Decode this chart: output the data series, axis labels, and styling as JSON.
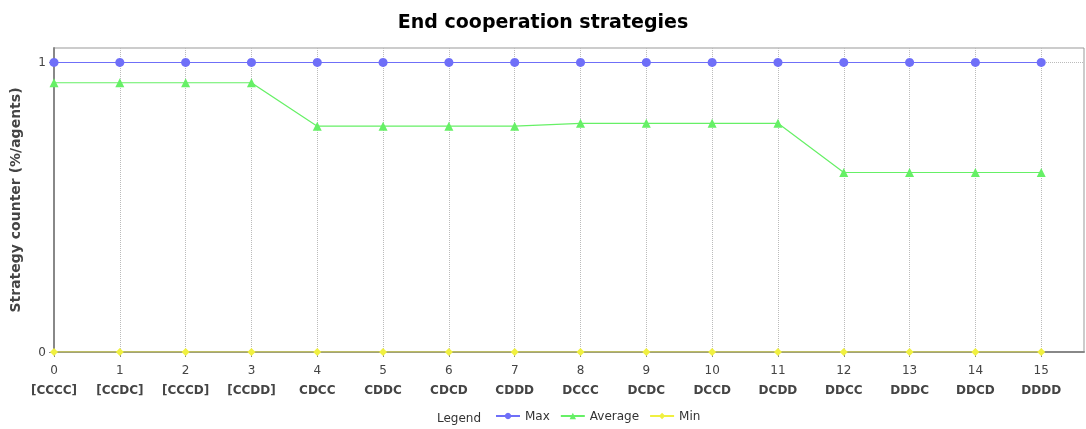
{
  "chart_data": {
    "type": "line",
    "title": "End cooperation strategies",
    "ylabel": "Strategy counter (%/agents)",
    "legend_title": "Legend",
    "x": [
      0,
      1,
      2,
      3,
      4,
      5,
      6,
      7,
      8,
      9,
      10,
      11,
      12,
      13,
      14,
      15
    ],
    "xlim": [
      0,
      15.65
    ],
    "xticks": [
      {
        "value": 0,
        "label": "0\n[CCCC]"
      },
      {
        "value": 1,
        "label": "1\n[CCDC]"
      },
      {
        "value": 2,
        "label": "2\n[CCCD]"
      },
      {
        "value": 3,
        "label": "3\n[CCDD]"
      },
      {
        "value": 4,
        "label": "4\nCDCC"
      },
      {
        "value": 5,
        "label": "5\nCDDC"
      },
      {
        "value": 6,
        "label": "6\nCDCD"
      },
      {
        "value": 7,
        "label": "7\nCDDD"
      },
      {
        "value": 8,
        "label": "8\nDCCC"
      },
      {
        "value": 9,
        "label": "9\nDCDC"
      },
      {
        "value": 10,
        "label": "10\nDCCD"
      },
      {
        "value": 11,
        "label": "11\nDCDD"
      },
      {
        "value": 12,
        "label": "12\nDDCC"
      },
      {
        "value": 13,
        "label": "13\nDDDC"
      },
      {
        "value": 14,
        "label": "14\nDDCD"
      },
      {
        "value": 15,
        "label": "15\nDDDD"
      }
    ],
    "ylim": [
      0,
      1.05
    ],
    "yticks": [
      0,
      1
    ],
    "grid": true,
    "legend": "bottom",
    "line_style": "solid",
    "series": [
      {
        "name": "Max",
        "color": "#6f6ff8",
        "marker": "circle",
        "values": [
          1,
          1,
          1,
          1,
          1,
          1,
          1,
          1,
          1,
          1,
          1,
          1,
          1,
          1,
          1,
          1
        ]
      },
      {
        "name": "Average",
        "color": "#66f066",
        "marker": "triangle",
        "values": [
          0.93,
          0.93,
          0.93,
          0.93,
          0.78,
          0.78,
          0.78,
          0.78,
          0.79,
          0.79,
          0.79,
          0.79,
          0.62,
          0.62,
          0.62,
          0.62
        ]
      },
      {
        "name": "Min",
        "color": "#f0f040",
        "marker": "diamond",
        "values": [
          0,
          0,
          0,
          0,
          0,
          0,
          0,
          0,
          0,
          0,
          0,
          0,
          0,
          0,
          0,
          0
        ]
      }
    ]
  }
}
